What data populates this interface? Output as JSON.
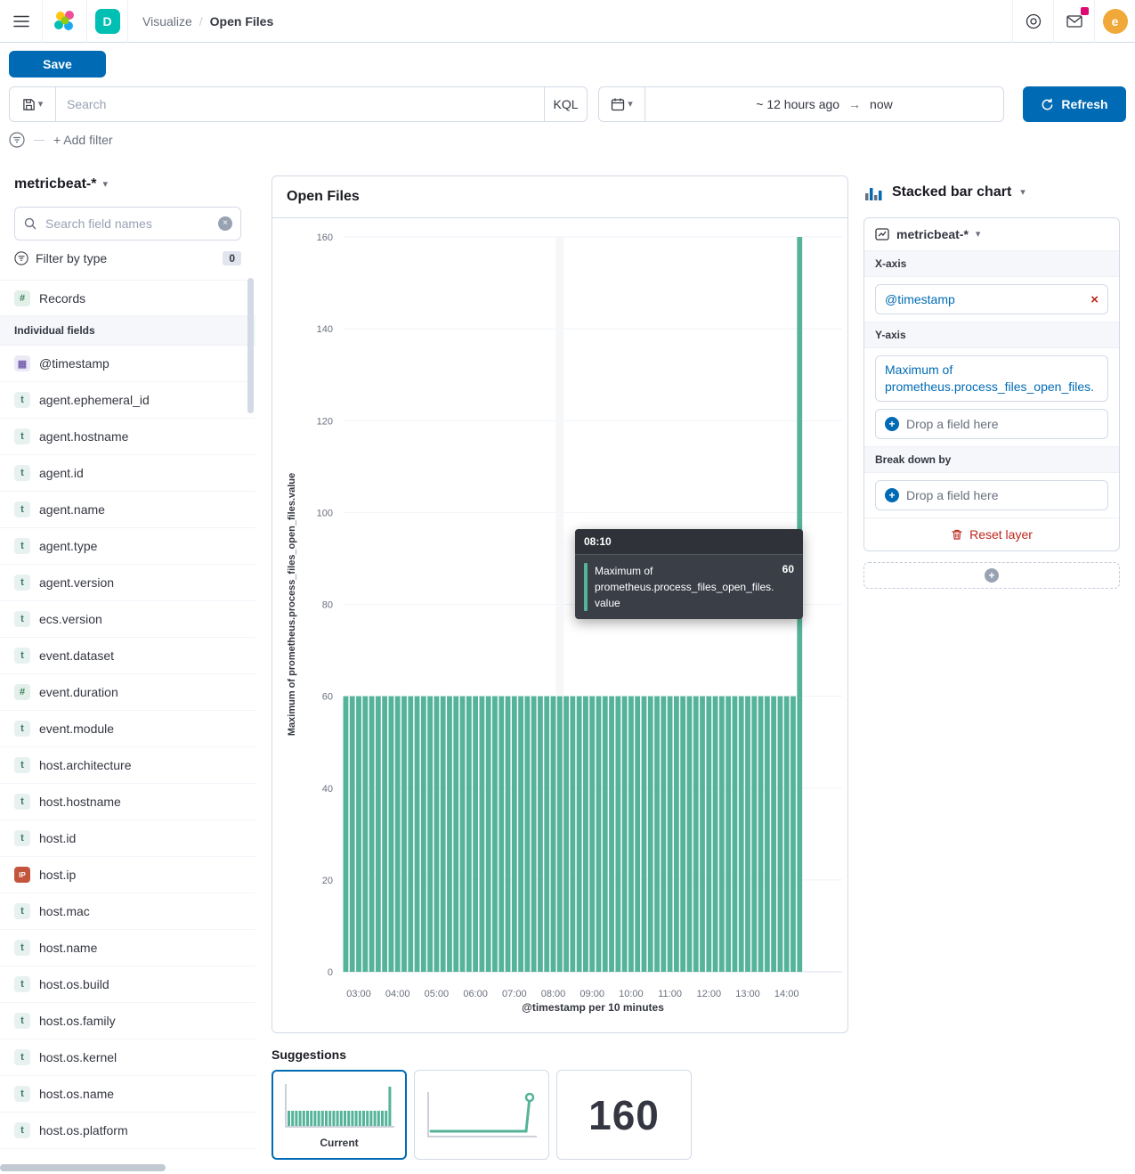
{
  "colors": {
    "primary": "#006BB4",
    "series_teal": "#54B399",
    "danger": "#BD271E",
    "notification_pink": "#DD0A73",
    "space_badge_teal": "#00BFB3",
    "avatar_orange": "#F0A839"
  },
  "icons": {
    "chevron_down": "▾",
    "close": "×",
    "plus": "+",
    "arrow_right": "→",
    "date_token": "▦",
    "string_token": "t",
    "number_token": "#",
    "ip_token": "IP"
  },
  "top_nav": {
    "space_initial": "D",
    "breadcrumb_section": "Visualize",
    "breadcrumb_separator": "/",
    "breadcrumb_page": "Open Files",
    "avatar_initial": "e"
  },
  "toolbar": {
    "save_label": "Save",
    "search_placeholder": "Search",
    "kql_label": "KQL",
    "time_from": "~ 12 hours ago",
    "time_to": "now",
    "refresh_label": "Refresh",
    "add_filter_label": "+ Add filter"
  },
  "sidebar": {
    "index_pattern": "metricbeat-*",
    "field_search_placeholder": "Search field names",
    "filter_by_type_label": "Filter by type",
    "filter_by_type_count": "0",
    "records_label": "Records",
    "section_label": "Individual fields",
    "fields": [
      {
        "name": "@timestamp",
        "type": "date"
      },
      {
        "name": "agent.ephemeral_id",
        "type": "string"
      },
      {
        "name": "agent.hostname",
        "type": "string"
      },
      {
        "name": "agent.id",
        "type": "string"
      },
      {
        "name": "agent.name",
        "type": "string"
      },
      {
        "name": "agent.type",
        "type": "string"
      },
      {
        "name": "agent.version",
        "type": "string"
      },
      {
        "name": "ecs.version",
        "type": "string"
      },
      {
        "name": "event.dataset",
        "type": "string"
      },
      {
        "name": "event.duration",
        "type": "number"
      },
      {
        "name": "event.module",
        "type": "string"
      },
      {
        "name": "host.architecture",
        "type": "string"
      },
      {
        "name": "host.hostname",
        "type": "string"
      },
      {
        "name": "host.id",
        "type": "string"
      },
      {
        "name": "host.ip",
        "type": "ip"
      },
      {
        "name": "host.mac",
        "type": "string"
      },
      {
        "name": "host.name",
        "type": "string"
      },
      {
        "name": "host.os.build",
        "type": "string"
      },
      {
        "name": "host.os.family",
        "type": "string"
      },
      {
        "name": "host.os.kernel",
        "type": "string"
      },
      {
        "name": "host.os.name",
        "type": "string"
      },
      {
        "name": "host.os.platform",
        "type": "string"
      }
    ]
  },
  "chart_panel": {
    "title": "Open Files"
  },
  "chart_data": {
    "type": "bar",
    "title": "Open Files",
    "xlabel": "@timestamp per 10 minutes",
    "ylabel": "Maximum of prometheus.process_files_open_files.value",
    "ylim": [
      0,
      160
    ],
    "yticks": [
      0,
      20,
      40,
      60,
      80,
      100,
      120,
      140,
      160
    ],
    "hour_ticks": [
      "03:00",
      "04:00",
      "05:00",
      "06:00",
      "07:00",
      "08:00",
      "09:00",
      "10:00",
      "11:00",
      "12:00",
      "13:00",
      "14:00"
    ],
    "x_start": "02:40",
    "x_end": "14:20",
    "interval_minutes": 10,
    "grid": true,
    "legend": false,
    "hovered_index": 33,
    "hovered_time": "08:10",
    "series": [
      {
        "name": "Maximum of prometheus.process_files_open_files.value",
        "color": "#54B399",
        "values": [
          60,
          60,
          60,
          60,
          60,
          60,
          60,
          60,
          60,
          60,
          60,
          60,
          60,
          60,
          60,
          60,
          60,
          60,
          60,
          60,
          60,
          60,
          60,
          60,
          60,
          60,
          60,
          60,
          60,
          60,
          60,
          60,
          60,
          60,
          60,
          60,
          60,
          60,
          60,
          60,
          60,
          60,
          60,
          60,
          60,
          60,
          60,
          60,
          60,
          60,
          60,
          60,
          60,
          60,
          60,
          60,
          60,
          60,
          60,
          60,
          60,
          60,
          60,
          60,
          60,
          60,
          60,
          60,
          60,
          60,
          160
        ]
      }
    ]
  },
  "tooltip": {
    "header": "08:10",
    "label": "Maximum of prometheus.process_files_open_files.value",
    "value": "60"
  },
  "config": {
    "chart_type": "Stacked bar chart",
    "layer_index_pattern": "metricbeat-*",
    "x_axis_label": "X-axis",
    "x_field": "@timestamp",
    "y_axis_label": "Y-axis",
    "y_field": "Maximum of prometheus.process_files_open_files.",
    "drop_label": "Drop a field here",
    "break_down_label": "Break down by",
    "reset_label": "Reset layer"
  },
  "suggestions": {
    "title": "Suggestions",
    "current_label": "Current",
    "metric_value": "160"
  }
}
